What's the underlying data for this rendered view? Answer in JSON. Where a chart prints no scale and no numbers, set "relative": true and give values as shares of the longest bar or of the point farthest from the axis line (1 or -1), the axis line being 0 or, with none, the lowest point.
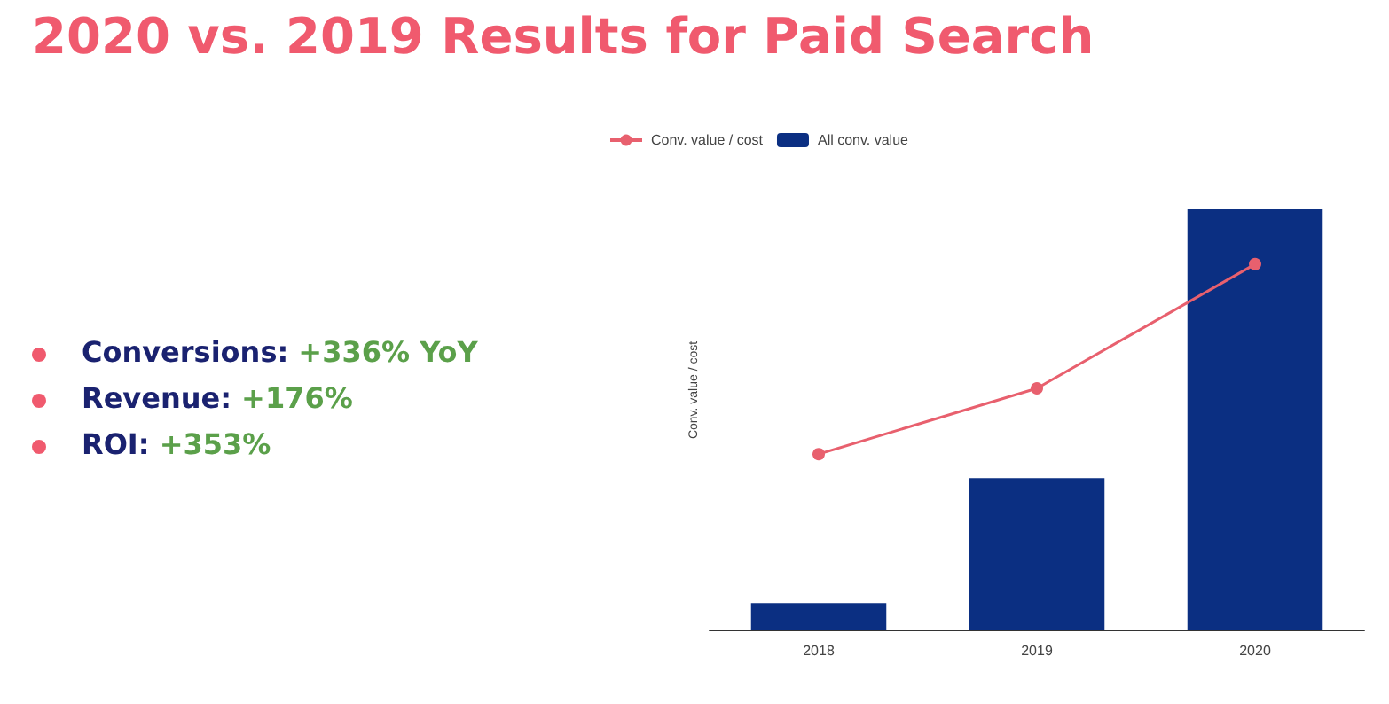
{
  "chart_data": {
    "type": "bar",
    "title": "2020 vs. 2019 Results for Paid Search",
    "ylabel": "Conv. value / cost",
    "relative": true,
    "categories": [
      "2018",
      "2019",
      "2020"
    ],
    "series": [
      {
        "name": "Conv. value / cost",
        "type": "line",
        "axis": "y2",
        "color": "#e8606e",
        "values": [
          0.48,
          0.66,
          1
        ],
        "marker": "circle"
      },
      {
        "name": "All conv. value",
        "color": "#0b2f82",
        "values": [
          0.063,
          0.36,
          1
        ]
      }
    ],
    "legend": "top left",
    "grid": false,
    "annotations": [
      "Conversions: +336% YoY",
      "Revenue: +176%",
      "ROI: +353%"
    ]
  }
}
